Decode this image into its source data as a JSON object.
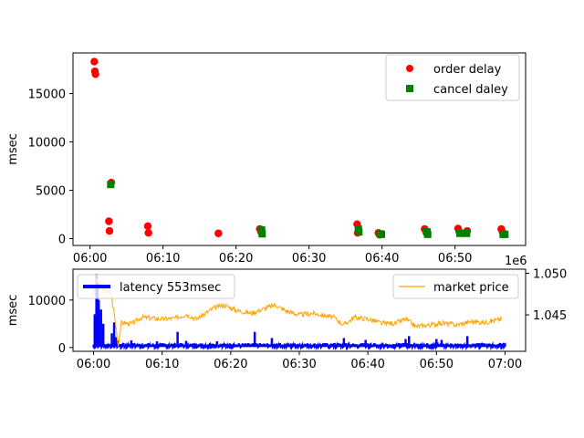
{
  "chart_data": [
    {
      "type": "scatter",
      "ylabel": "msec",
      "xlim": [
        "05:57:40",
        "06:59:40"
      ],
      "ylim": [
        -700,
        19200
      ],
      "x_ticks": [
        "06:00",
        "06:10",
        "06:20",
        "06:30",
        "06:40",
        "06:50"
      ],
      "y_ticks": [
        0,
        5000,
        10000,
        15000
      ],
      "legend": {
        "position": "top-right"
      },
      "series": [
        {
          "name": "order delay",
          "marker": "circle",
          "color": "#ff0000",
          "points": [
            [
              "06:00:35",
              18300
            ],
            [
              "06:00:40",
              17300
            ],
            [
              "06:00:45",
              17000
            ],
            [
              "06:02:35",
              1800
            ],
            [
              "06:02:40",
              800
            ],
            [
              "06:02:55",
              5800
            ],
            [
              "06:07:55",
              1300
            ],
            [
              "06:08:00",
              600
            ],
            [
              "06:17:35",
              550
            ],
            [
              "06:23:15",
              1000
            ],
            [
              "06:23:25",
              700
            ],
            [
              "06:36:35",
              1500
            ],
            [
              "06:36:40",
              600
            ],
            [
              "06:39:30",
              600
            ],
            [
              "06:39:40",
              400
            ],
            [
              "06:45:50",
              1000
            ],
            [
              "06:46:05",
              600
            ],
            [
              "06:50:25",
              1050
            ],
            [
              "06:50:35",
              700
            ],
            [
              "06:51:40",
              800
            ],
            [
              "06:56:20",
              1000
            ],
            [
              "06:56:30",
              700
            ]
          ]
        },
        {
          "name": "cancel daley",
          "marker": "square",
          "color": "#008000",
          "points": [
            [
              "06:02:50",
              5600
            ],
            [
              "06:23:30",
              900
            ],
            [
              "06:23:35",
              500
            ],
            [
              "06:36:45",
              1000
            ],
            [
              "06:36:50",
              700
            ],
            [
              "06:39:45",
              500
            ],
            [
              "06:39:55",
              450
            ],
            [
              "06:46:10",
              700
            ],
            [
              "06:46:15",
              450
            ],
            [
              "06:50:40",
              550
            ],
            [
              "06:51:35",
              550
            ],
            [
              "06:56:35",
              450
            ],
            [
              "06:56:50",
              450
            ]
          ]
        }
      ]
    },
    {
      "type": "line",
      "ylabel": "msec",
      "xlim": [
        "05:57:00",
        "07:03:00"
      ],
      "ylim": [
        -800,
        16500
      ],
      "x_ticks": [
        "06:00",
        "06:10",
        "06:20",
        "06:30",
        "06:40",
        "06:50",
        "07:00"
      ],
      "y_ticks": [
        0,
        10000
      ],
      "y2lim": [
        1.04062,
        1.05049
      ],
      "y2_ticks": [
        1.045,
        1.05
      ],
      "y2_offset_label": "1e6",
      "legends": [
        {
          "position": "upper-left",
          "entries": [
            "latency 553msec"
          ]
        },
        {
          "position": "upper-right",
          "entries": [
            "market price"
          ]
        }
      ],
      "series": [
        {
          "name": "latency 553msec",
          "axis": "left",
          "color": "#0000ff",
          "baseline": 600,
          "spikes": [
            [
              "06:00:10",
              7000
            ],
            [
              "06:00:25",
              15500
            ],
            [
              "06:00:35",
              13500
            ],
            [
              "06:00:45",
              10000
            ],
            [
              "06:01:05",
              8000
            ],
            [
              "06:01:25",
              5000
            ],
            [
              "06:02:40",
              3000
            ],
            [
              "06:03:00",
              5300
            ],
            [
              "06:03:15",
              2200
            ],
            [
              "06:03:30",
              1500
            ],
            [
              "06:05:30",
              1500
            ],
            [
              "06:09:15",
              1300
            ],
            [
              "06:12:15",
              3300
            ],
            [
              "06:13:30",
              1400
            ],
            [
              "06:18:00",
              1300
            ],
            [
              "06:23:30",
              3300
            ],
            [
              "06:26:00",
              2000
            ],
            [
              "06:36:30",
              2000
            ],
            [
              "06:39:40",
              1600
            ],
            [
              "06:45:30",
              1800
            ],
            [
              "06:46:00",
              2400
            ],
            [
              "06:50:00",
              1800
            ],
            [
              "06:50:45",
              1600
            ],
            [
              "06:54:30",
              2400
            ]
          ]
        },
        {
          "name": "market price",
          "axis": "right",
          "color": "#ffa500",
          "points": [
            [
              "06:00:00",
              1.0475
            ],
            [
              "06:00:25",
              1.0493
            ],
            [
              "06:00:45",
              1.0488
            ],
            [
              "06:01:30",
              1.0481
            ],
            [
              "06:02:30",
              1.0476
            ],
            [
              "06:03:00",
              1.0452
            ],
            [
              "06:03:20",
              1.0432
            ],
            [
              "06:03:35",
              1.0413
            ],
            [
              "06:04:05",
              1.0441
            ],
            [
              "06:05:30",
              1.0439
            ],
            [
              "06:07:00",
              1.0447
            ],
            [
              "06:10:00",
              1.0445
            ],
            [
              "06:12:00",
              1.0446
            ],
            [
              "06:13:30",
              1.0451
            ],
            [
              "06:15:00",
              1.0445
            ],
            [
              "06:17:30",
              1.0458
            ],
            [
              "06:19:00",
              1.0462
            ],
            [
              "06:21:00",
              1.0455
            ],
            [
              "06:23:00",
              1.0452
            ],
            [
              "06:25:00",
              1.0458
            ],
            [
              "06:26:30",
              1.0462
            ],
            [
              "06:28:00",
              1.0455
            ],
            [
              "06:30:00",
              1.045
            ],
            [
              "06:32:00",
              1.0452
            ],
            [
              "06:35:00",
              1.0447
            ],
            [
              "06:36:30",
              1.0438
            ],
            [
              "06:38:00",
              1.0447
            ],
            [
              "06:40:00",
              1.0445
            ],
            [
              "06:42:00",
              1.044
            ],
            [
              "06:44:00",
              1.044
            ],
            [
              "06:45:30",
              1.0445
            ],
            [
              "06:47:00",
              1.0436
            ],
            [
              "06:49:00",
              1.0438
            ],
            [
              "06:51:00",
              1.044
            ],
            [
              "06:53:00",
              1.0438
            ],
            [
              "06:55:00",
              1.0442
            ],
            [
              "06:57:00",
              1.0441
            ],
            [
              "06:59:30",
              1.0445
            ]
          ]
        }
      ]
    }
  ]
}
